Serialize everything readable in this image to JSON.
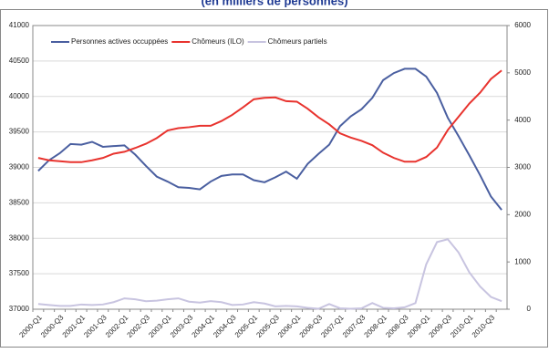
{
  "chart_data": {
    "type": "line",
    "title": "(en milliers de personnes)",
    "categories": [
      "2000-Q1",
      null,
      "2000-Q3",
      null,
      "2001-Q1",
      null,
      "2001-Q3",
      null,
      "2002-Q1",
      null,
      "2002-Q3",
      null,
      "2003-Q1",
      null,
      "2003-Q3",
      null,
      "2004-Q1",
      null,
      "2004-Q3",
      null,
      "2005-Q1",
      null,
      "2005-Q3",
      null,
      "2006-Q1",
      null,
      "2006-Q3",
      null,
      "2007-Q1",
      null,
      "2007-Q3",
      null,
      "2008-Q1",
      null,
      "2008-Q3",
      null,
      "2009-Q1",
      null,
      "2009-Q3",
      null,
      "2010-Q1",
      null,
      "2010-Q3",
      null
    ],
    "series": [
      {
        "name": "Personnes actives occuppées",
        "color": "#4a5fa0",
        "axis": "y",
        "values": [
          38950,
          39100,
          39200,
          39330,
          39320,
          39360,
          39290,
          39300,
          39310,
          39180,
          39020,
          38870,
          38800,
          38720,
          38710,
          38690,
          38800,
          38880,
          38900,
          38900,
          38820,
          38790,
          38860,
          38940,
          38840,
          39050,
          39190,
          39320,
          39580,
          39720,
          39820,
          39980,
          40230,
          40330,
          40390,
          40390,
          40280,
          40050,
          39700,
          39440,
          39170,
          38890,
          38590,
          38400
        ]
      },
      {
        "name": "Chômeurs (ILO)",
        "color": "#e8332e",
        "axis": "y2",
        "values": [
          3200,
          3150,
          3130,
          3110,
          3110,
          3150,
          3200,
          3290,
          3330,
          3410,
          3500,
          3620,
          3780,
          3830,
          3850,
          3880,
          3880,
          3980,
          4110,
          4270,
          4440,
          4470,
          4480,
          4400,
          4390,
          4240,
          4060,
          3910,
          3720,
          3630,
          3560,
          3470,
          3310,
          3200,
          3120,
          3120,
          3220,
          3420,
          3790,
          4070,
          4350,
          4580,
          4870,
          5050
        ]
      },
      {
        "name": "Chômeurs partiels",
        "color": "#c8c4e0",
        "axis": "y2",
        "values": [
          110,
          90,
          70,
          70,
          100,
          90,
          100,
          150,
          230,
          210,
          170,
          180,
          210,
          230,
          160,
          140,
          170,
          150,
          90,
          100,
          150,
          120,
          60,
          70,
          60,
          30,
          10,
          110,
          20,
          10,
          20,
          130,
          30,
          20,
          40,
          130,
          950,
          1420,
          1480,
          1200,
          780,
          480,
          260,
          170
        ]
      }
    ],
    "ylim": [
      37000,
      41000
    ],
    "yticks": [
      37000,
      37500,
      38000,
      38500,
      39000,
      39500,
      40000,
      40500,
      41000
    ],
    "y2lim": [
      0,
      6000
    ],
    "y2ticks": [
      0,
      1000,
      2000,
      3000,
      4000,
      5000,
      6000
    ],
    "grid": true,
    "legend": "top-left"
  }
}
